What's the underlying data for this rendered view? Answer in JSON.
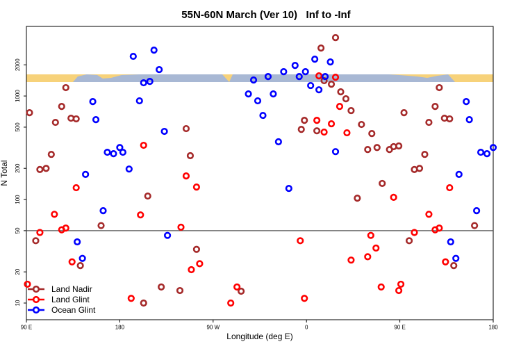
{
  "chart_data": {
    "type": "scatter",
    "title": "55N-60N March (Ver 10)   Inf to -Inf",
    "x_label": "Longitude (deg E)",
    "y_label": "N Total",
    "log_y": true,
    "grid": false,
    "legend_position": "bottom-left",
    "xlim": [
      90,
      540
    ],
    "xticks": [
      {
        "value": 90,
        "label": "90 E"
      },
      180,
      {
        "value": 270,
        "label": "90 W"
      },
      {
        "value": 360,
        "label": "0"
      },
      {
        "value": 450,
        "label": "90 E"
      },
      {
        "value": 540,
        "label": "180"
      }
    ],
    "ylim": [
      6.9,
      4700
    ],
    "yticks": [
      10,
      20,
      50,
      100,
      200,
      500,
      1000,
      2000
    ],
    "ref_line": 50,
    "ref_line_color": "#555555",
    "series": [
      {
        "name": "Land Nadir",
        "color": "#a52a2a",
        "x": [
          93,
          99,
          103,
          109,
          114,
          118,
          124,
          128,
          133,
          138,
          142,
          162,
          203,
          207,
          220,
          238,
          244,
          248,
          254,
          297,
          355,
          358,
          370,
          374,
          377,
          384,
          388,
          393,
          398,
          403,
          409,
          413,
          419,
          423,
          428,
          433,
          440,
          444,
          449,
          454,
          459,
          464,
          469,
          474,
          478,
          484,
          488,
          493,
          498,
          502,
          522
        ],
        "values": [
          690,
          40,
          195,
          200,
          273,
          556,
          793,
          1205,
          610,
          601,
          23,
          56,
          10,
          108,
          14.3,
          13.2,
          484,
          265,
          33,
          13,
          476,
          582,
          461,
          2904,
          1406,
          1300,
          3664,
          1097,
          940,
          723,
          103,
          531,
          304,
          434,
          318,
          143,
          304,
          324,
          329,
          690,
          40,
          195,
          200,
          273,
          556,
          793,
          1205,
          610,
          601,
          23,
          56
        ]
      },
      {
        "name": "Land Glint",
        "color": "#ff0000",
        "x": [
          91,
          103,
          117,
          124,
          128,
          134,
          138,
          191,
          200,
          203,
          239,
          244,
          249,
          254,
          257,
          287,
          293,
          354,
          358,
          370,
          372,
          377,
          384,
          388,
          392,
          399,
          403,
          419,
          422,
          427,
          432,
          444,
          449,
          451,
          464,
          478,
          484,
          488,
          494,
          498
        ],
        "values": [
          15.2,
          48,
          72,
          51,
          53,
          25,
          130,
          11.1,
          71,
          334,
          54,
          169,
          21,
          132,
          24,
          10,
          14.3,
          40,
          11.1,
          582,
          1566,
          448,
          539,
          1517,
          793,
          441,
          26,
          28,
          45,
          34,
          14.3,
          105,
          13.2,
          15.2,
          48,
          72,
          51,
          53,
          25,
          130
        ]
      },
      {
        "name": "Ocean Glint",
        "color": "#0000ff",
        "x": [
          139,
          144,
          147,
          154,
          157,
          164,
          168,
          174,
          180,
          183,
          189,
          193,
          199,
          203,
          209,
          213,
          218,
          223,
          226,
          304,
          309,
          313,
          318,
          323,
          328,
          333,
          338,
          343,
          349,
          353,
          359,
          364,
          368,
          372,
          378,
          383,
          388,
          499,
          504,
          507,
          514,
          517,
          524,
          528,
          534,
          540
        ],
        "values": [
          39,
          27,
          175,
          883,
          591,
          78,
          286,
          277,
          318,
          286,
          197,
          2415,
          898,
          1342,
          1383,
          2773,
          1800,
          455,
          45,
          1047,
          1427,
          898,
          649,
          1542,
          1047,
          361,
          1718,
          128,
          1974,
          1542,
          1718,
          1262,
          2268,
          1148,
          1542,
          2133,
          290,
          39,
          27,
          175,
          883,
          591,
          78,
          286,
          277,
          318
        ]
      }
    ]
  }
}
